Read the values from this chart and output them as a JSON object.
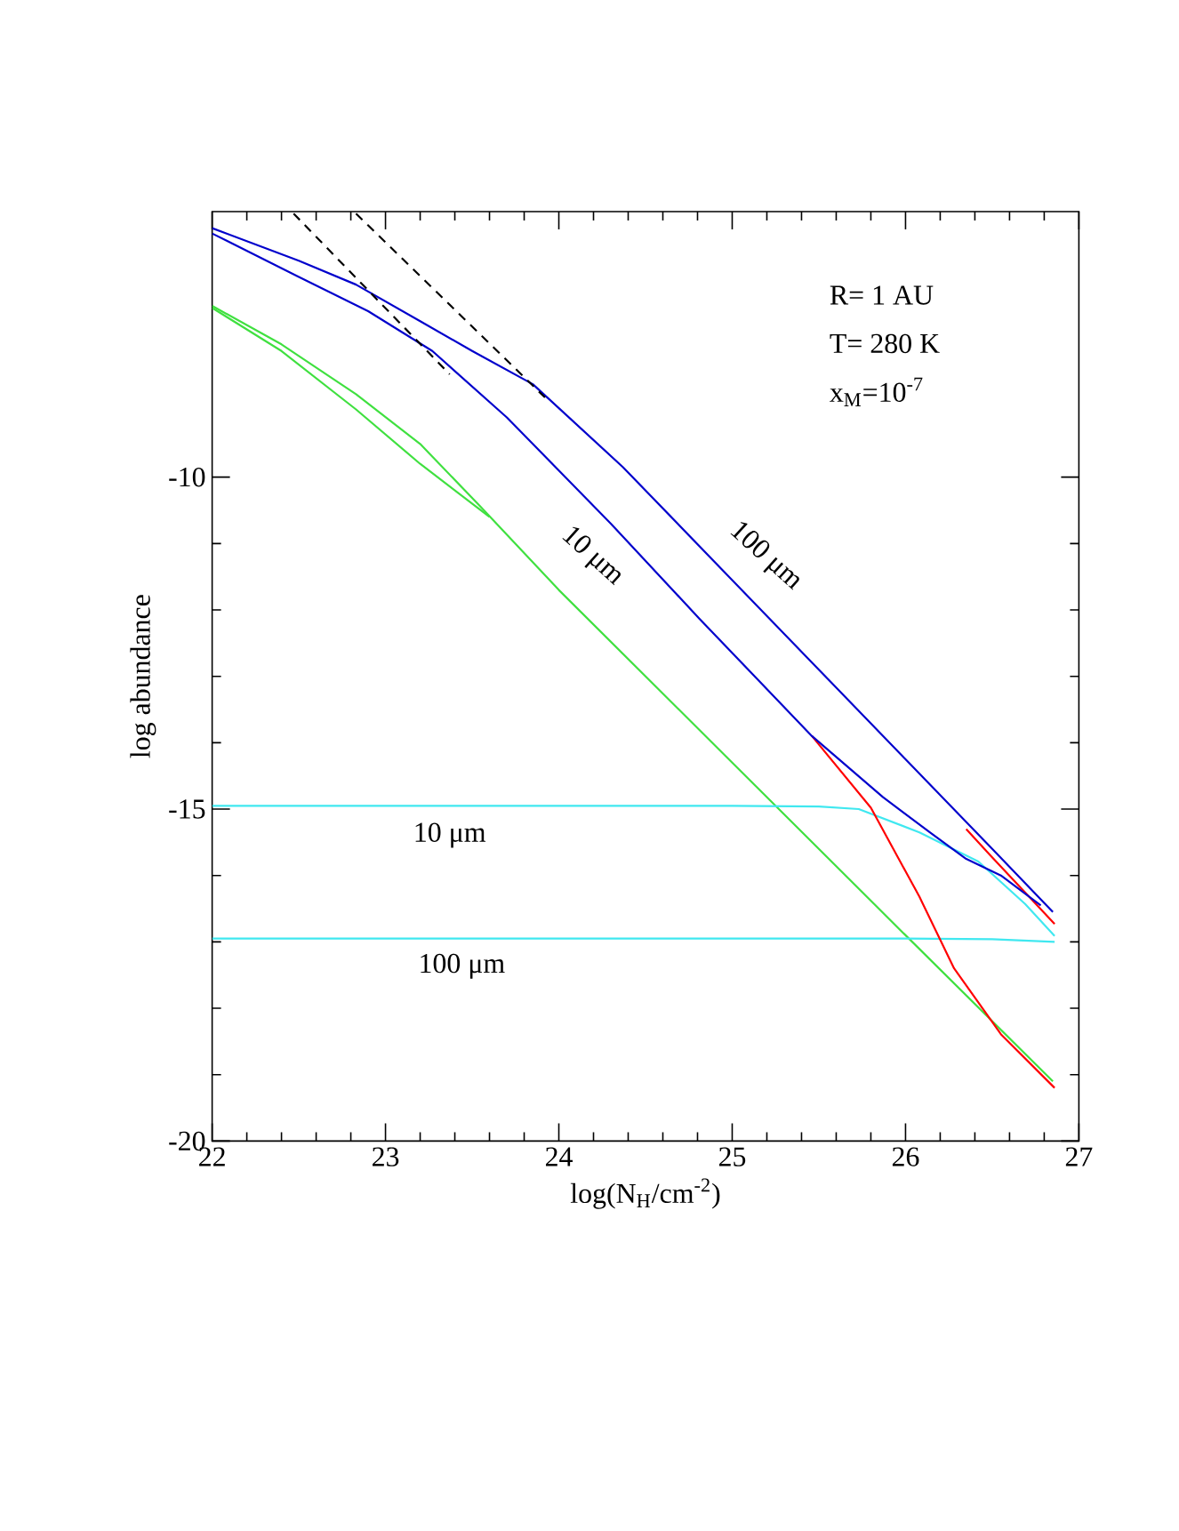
{
  "chart_data": {
    "type": "line",
    "xlabel": "log(N$_{H}$/cm$^{-2}$)",
    "ylabel": "log abundance",
    "xlim": [
      22,
      27
    ],
    "ylim": [
      -20,
      -6
    ],
    "xticks": [
      22,
      23,
      24,
      25,
      26,
      27
    ],
    "yticks": [
      -20,
      -15,
      -10
    ],
    "series": [
      {
        "color": "#40e040",
        "x": [
          22,
          22.4,
          22.83,
          23.2,
          23.55,
          24,
          25,
          26,
          26.85
        ],
        "values": [
          -7.42,
          -8.0,
          -8.75,
          -9.5,
          -10.45,
          -11.7,
          -14.3,
          -16.9,
          -19.1
        ]
      },
      {
        "color": "#40e040",
        "x": [
          22,
          22.4,
          22.83,
          23.2,
          23.6
        ],
        "values": [
          -7.45,
          -8.1,
          -8.98,
          -9.8,
          -10.6
        ]
      },
      {
        "color": "#40e8f0",
        "x": [
          22,
          25.0,
          25.5,
          25.73,
          26.08,
          26.42,
          26.69,
          26.86
        ],
        "values": [
          -14.95,
          -14.95,
          -14.96,
          -15.0,
          -15.35,
          -15.79,
          -16.43,
          -16.91
        ]
      },
      {
        "color": "#40e8f0",
        "x": [
          22,
          26.0,
          26.5,
          26.86
        ],
        "values": [
          -16.95,
          -16.95,
          -16.96,
          -17.0
        ]
      },
      {
        "color": "#ff0000",
        "x": [
          25.46,
          25.8,
          26.08,
          26.28,
          26.55,
          26.86
        ],
        "values": [
          -13.9,
          -14.98,
          -16.32,
          -17.4,
          -18.39,
          -19.2
        ]
      },
      {
        "color": "#ff0000",
        "x": [
          26.35,
          26.49,
          26.86
        ],
        "values": [
          -15.3,
          -15.7,
          -16.73
        ]
      },
      {
        "color": "#0000cc",
        "x": [
          22,
          22.5,
          22.83,
          23.2,
          23.5,
          23.85,
          24.37,
          25,
          25.5,
          26,
          26.5,
          26.85
        ],
        "values": [
          -6.25,
          -6.74,
          -7.1,
          -7.65,
          -8.1,
          -8.6,
          -9.85,
          -11.55,
          -12.9,
          -14.25,
          -15.6,
          -16.55
        ]
      },
      {
        "color": "#0000cc",
        "x": [
          22,
          22.49,
          22.9,
          23.27,
          23.7,
          24.3,
          24.81,
          25.46,
          25.87,
          26.14,
          26.35,
          26.55,
          26.78
        ],
        "values": [
          -6.33,
          -6.97,
          -7.5,
          -8.1,
          -9.1,
          -10.7,
          -12.13,
          -13.9,
          -14.82,
          -15.35,
          -15.75,
          -16.0,
          -16.45
        ]
      },
      {
        "color": "#000000",
        "line_style": "dashed",
        "x": [
          22.47,
          23.37
        ],
        "values": [
          -6.03,
          -8.45
        ]
      },
      {
        "color": "#000000",
        "line_style": "dashed",
        "x": [
          22.83,
          23.92
        ],
        "values": [
          -6.03,
          -8.8
        ]
      }
    ],
    "annotations": [
      "10 μm",
      "100 μm",
      "10 μm",
      "100 μm",
      "R= 1 AU",
      "T= 280 K",
      "x$_{M}$=10$^{-7}$"
    ]
  }
}
